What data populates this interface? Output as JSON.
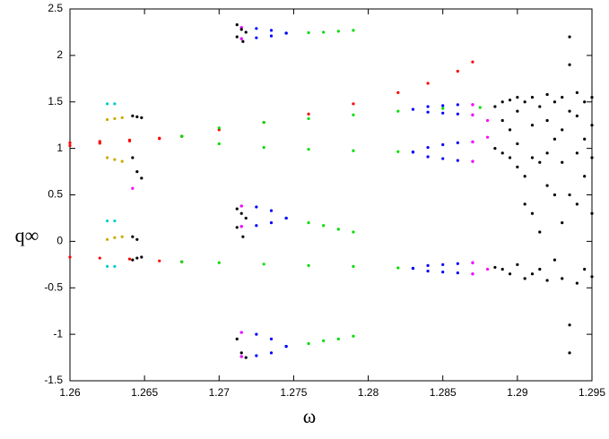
{
  "chart_data": {
    "type": "scatter",
    "x_label": "ω",
    "y_label": "q∞",
    "xlim": [
      1.26,
      1.295
    ],
    "ylim": [
      -1.5,
      2.5
    ],
    "xticks": [
      1.26,
      1.265,
      1.27,
      1.275,
      1.28,
      1.285,
      1.29,
      1.295
    ],
    "yticks": [
      -1.5,
      -1,
      -0.5,
      0,
      0.5,
      1,
      1.5,
      2,
      2.5
    ],
    "series": [
      {
        "color": "#ff0000",
        "x": [
          1.26,
          1.262,
          1.264,
          1.266,
          1.2675
        ],
        "values": [
          1.06,
          1.075,
          1.09,
          1.11,
          1.13
        ]
      },
      {
        "color": "#ff0000",
        "x": [
          1.26,
          1.262,
          1.264,
          1.266,
          1.2675
        ],
        "values": [
          1.03,
          1.055,
          1.08,
          1.105,
          1.13
        ]
      },
      {
        "color": "#ff0000",
        "x": [
          1.2675,
          1.27,
          1.273,
          1.276,
          1.279,
          1.282,
          1.284,
          1.286,
          1.287
        ],
        "values": [
          1.13,
          1.2,
          1.28,
          1.37,
          1.48,
          1.6,
          1.7,
          1.83,
          1.93
        ]
      },
      {
        "color": "#ff0000",
        "x": [
          1.26,
          1.262,
          1.264,
          1.266,
          1.2675
        ],
        "values": [
          -0.17,
          -0.18,
          -0.19,
          -0.21,
          -0.22
        ]
      },
      {
        "color": "#00dd00",
        "x": [
          1.2675,
          1.27,
          1.273,
          1.276,
          1.279,
          1.282,
          1.285,
          1.2875
        ],
        "values": [
          1.13,
          1.22,
          1.28,
          1.32,
          1.36,
          1.4,
          1.43,
          1.44
        ]
      },
      {
        "color": "#00dd00",
        "x": [
          1.2675,
          1.27,
          1.273,
          1.276,
          1.279,
          1.282,
          1.283
        ],
        "values": [
          1.13,
          1.05,
          1.01,
          0.99,
          0.975,
          0.965,
          0.96
        ]
      },
      {
        "color": "#00dd00",
        "x": [
          1.2675,
          1.27,
          1.273,
          1.276,
          1.279,
          1.282,
          1.283
        ],
        "values": [
          -0.22,
          -0.23,
          -0.245,
          -0.26,
          -0.27,
          -0.285,
          -0.29
        ]
      },
      {
        "color": "#00dd00",
        "x": [
          1.2745,
          1.276,
          1.277,
          1.278,
          1.279
        ],
        "values": [
          2.24,
          2.245,
          2.25,
          2.26,
          2.27
        ]
      },
      {
        "color": "#00dd00",
        "x": [
          1.2745,
          1.276,
          1.277,
          1.278,
          1.279
        ],
        "values": [
          0.25,
          0.2,
          0.17,
          0.13,
          0.1
        ]
      },
      {
        "color": "#00dd00",
        "x": [
          1.2745,
          1.276,
          1.277,
          1.278,
          1.279
        ],
        "values": [
          -1.13,
          -1.1,
          -1.07,
          -1.05,
          -1.02
        ]
      },
      {
        "color": "#0000ff",
        "x": [
          1.283,
          1.284,
          1.285,
          1.286,
          1.287
        ],
        "values": [
          1.42,
          1.45,
          1.46,
          1.47,
          1.47
        ]
      },
      {
        "color": "#0000ff",
        "x": [
          1.283,
          1.284,
          1.285,
          1.286,
          1.287
        ],
        "values": [
          1.42,
          1.39,
          1.38,
          1.37,
          1.36
        ]
      },
      {
        "color": "#0000ff",
        "x": [
          1.283,
          1.284,
          1.285,
          1.286,
          1.287
        ],
        "values": [
          0.96,
          1.01,
          1.04,
          1.06,
          1.07
        ]
      },
      {
        "color": "#0000ff",
        "x": [
          1.283,
          1.284,
          1.285,
          1.286,
          1.287
        ],
        "values": [
          0.96,
          0.91,
          0.89,
          0.87,
          0.86
        ]
      },
      {
        "color": "#0000ff",
        "x": [
          1.283,
          1.284,
          1.285,
          1.286,
          1.287
        ],
        "values": [
          -0.29,
          -0.26,
          -0.25,
          -0.24,
          -0.23
        ]
      },
      {
        "color": "#0000ff",
        "x": [
          1.283,
          1.284,
          1.285,
          1.286,
          1.287
        ],
        "values": [
          -0.29,
          -0.32,
          -0.33,
          -0.34,
          -0.35
        ]
      },
      {
        "color": "#0000ff",
        "x": [
          1.2745,
          1.2735,
          1.2725,
          1.2715
        ],
        "values": [
          2.24,
          2.27,
          2.29,
          2.3
        ]
      },
      {
        "color": "#0000ff",
        "x": [
          1.2745,
          1.2735,
          1.2725,
          1.2715
        ],
        "values": [
          2.24,
          2.21,
          2.19,
          2.18
        ]
      },
      {
        "color": "#0000ff",
        "x": [
          1.2745,
          1.2735,
          1.2725,
          1.2715
        ],
        "values": [
          0.25,
          0.33,
          0.37,
          0.38
        ]
      },
      {
        "color": "#0000ff",
        "x": [
          1.2745,
          1.2735,
          1.2725,
          1.2715
        ],
        "values": [
          0.25,
          0.2,
          0.17,
          0.16
        ]
      },
      {
        "color": "#0000ff",
        "x": [
          1.2745,
          1.2735,
          1.2725,
          1.2715
        ],
        "values": [
          -1.13,
          -1.05,
          -1.0,
          -0.98
        ]
      },
      {
        "color": "#0000ff",
        "x": [
          1.2745,
          1.2735,
          1.2725,
          1.2715
        ],
        "values": [
          -1.13,
          -1.2,
          -1.23,
          -1.24
        ]
      },
      {
        "color": "#ff00ff",
        "x": [
          1.2715,
          1.2715,
          1.2715,
          1.2715,
          1.2715,
          1.2715,
          1.287,
          1.287,
          1.287,
          1.287,
          1.287,
          1.287,
          1.288,
          1.288,
          1.288,
          1.2642
        ],
        "values": [
          2.3,
          2.18,
          0.38,
          0.16,
          -0.98,
          -1.24,
          1.47,
          1.36,
          1.07,
          0.86,
          -0.23,
          -0.35,
          1.3,
          1.12,
          -0.3,
          0.57
        ]
      },
      {
        "color": "#00cccc",
        "x": [
          1.2625,
          1.263,
          1.2625,
          1.263,
          1.2625,
          1.263
        ],
        "values": [
          1.48,
          1.48,
          0.22,
          0.22,
          -0.27,
          -0.27
        ]
      },
      {
        "color": "#ccaa00",
        "x": [
          1.2625,
          1.263,
          1.2635,
          1.2625,
          1.263,
          1.2635,
          1.2625,
          1.263,
          1.2635
        ],
        "values": [
          1.31,
          1.32,
          1.33,
          0.9,
          0.88,
          0.86,
          0.02,
          0.04,
          0.05
        ]
      },
      {
        "color": "#000000",
        "x": [
          1.2712,
          1.2715,
          1.2718,
          1.2712,
          1.2716,
          1.2712,
          1.2715,
          1.2718,
          1.2712,
          1.2716,
          1.2712,
          1.2715,
          1.2718,
          1.2642,
          1.2645,
          1.2648,
          1.2642,
          1.2645,
          1.2648,
          1.2642,
          1.2645,
          1.2648,
          1.2642,
          1.2645,
          1.2885,
          1.2885,
          1.2885,
          1.289,
          1.289,
          1.289,
          1.289,
          1.2895,
          1.2895,
          1.2895,
          1.2895,
          1.29,
          1.29,
          1.29,
          1.29,
          1.29,
          1.2905,
          1.2905,
          1.2905,
          1.2905,
          1.291,
          1.291,
          1.291,
          1.291,
          1.291,
          1.2915,
          1.2915,
          1.2915,
          1.2915,
          1.292,
          1.292,
          1.292,
          1.292,
          1.292,
          1.2925,
          1.2925,
          1.2925,
          1.2925,
          1.293,
          1.293,
          1.293,
          1.293,
          1.293,
          1.2935,
          1.2935,
          1.2935,
          1.2935,
          1.2935,
          1.2935,
          1.294,
          1.294,
          1.294,
          1.294,
          1.294,
          1.2945,
          1.2945,
          1.2945,
          1.2945,
          1.295,
          1.295,
          1.295,
          1.295,
          1.295
        ],
        "values": [
          2.33,
          2.28,
          2.25,
          2.2,
          2.15,
          0.35,
          0.3,
          0.25,
          0.15,
          0.05,
          -1.05,
          -1.2,
          -1.25,
          1.35,
          1.34,
          1.33,
          0.9,
          0.75,
          0.68,
          0.05,
          0.02,
          -0.17,
          -0.2,
          -0.18,
          1.45,
          1.0,
          -0.28,
          1.5,
          1.3,
          0.95,
          -0.3,
          1.52,
          1.2,
          0.9,
          -0.35,
          1.55,
          1.4,
          1.05,
          0.8,
          -0.25,
          1.5,
          0.7,
          0.4,
          -0.4,
          1.55,
          1.25,
          0.9,
          0.3,
          -0.35,
          1.45,
          0.85,
          0.1,
          -0.3,
          1.58,
          1.3,
          0.95,
          0.6,
          -0.42,
          1.5,
          1.1,
          0.5,
          -0.2,
          1.55,
          1.2,
          0.85,
          0.2,
          -0.4,
          2.2,
          1.9,
          1.4,
          0.5,
          -0.9,
          -1.2,
          1.6,
          1.35,
          0.95,
          0.4,
          -0.45,
          1.5,
          1.1,
          0.7,
          -0.3,
          1.55,
          1.25,
          0.9,
          0.3,
          -0.38
        ]
      }
    ]
  }
}
